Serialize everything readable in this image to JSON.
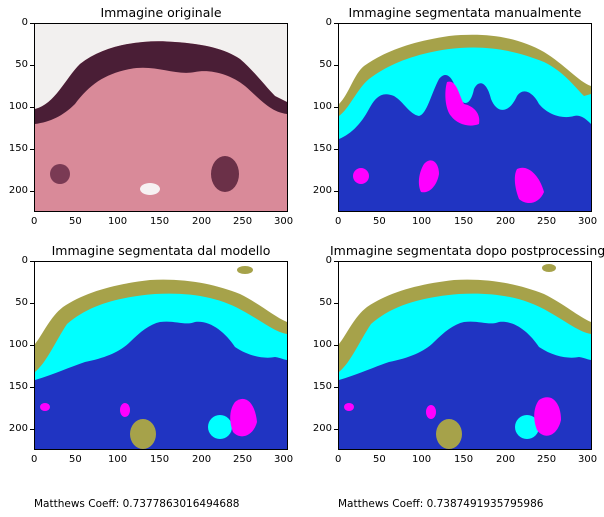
{
  "figure": {
    "panels": [
      {
        "id": "p1",
        "title": "Immagine originale"
      },
      {
        "id": "p2",
        "title": "Immagine segmentata manualmente"
      },
      {
        "id": "p3",
        "title": "Immagine segmentata dal modello"
      },
      {
        "id": "p4",
        "title": "Immagine segmentata dopo postprocessing"
      }
    ],
    "coeff_labels": [
      "Matthews Coeff: 0.7377863016494688",
      "Matthews Coeff: 0.7387491935795986"
    ]
  },
  "colors": {
    "background_class": "#2034c2",
    "cyan_class": "#00ffff",
    "olive_class": "#a6a24a",
    "magenta_class": "#ff00ff",
    "tissue_pink": "#d98a99",
    "tissue_dark": "#4a1e36",
    "slide_bg": "#f2f0ef"
  },
  "chart_data": [
    {
      "type": "image",
      "title": "Immagine originale",
      "xticks": [
        0,
        50,
        100,
        150,
        200,
        250,
        300
      ],
      "yticks": [
        0,
        50,
        100,
        150,
        200
      ],
      "xlim": [
        0,
        305
      ],
      "ylim": [
        225,
        0
      ]
    },
    {
      "type": "image",
      "title": "Immagine segmentata manualmente",
      "xticks": [
        0,
        50,
        100,
        150,
        200,
        250,
        300
      ],
      "yticks": [
        0,
        50,
        100,
        150,
        200
      ],
      "xlim": [
        0,
        305
      ],
      "ylim": [
        225,
        0
      ]
    },
    {
      "type": "image",
      "title": "Immagine segmentata dal modello",
      "xticks": [
        0,
        50,
        100,
        150,
        200,
        250,
        300
      ],
      "yticks": [
        0,
        50,
        100,
        150,
        200
      ],
      "xlim": [
        0,
        305
      ],
      "ylim": [
        225,
        0
      ],
      "annotation": "Matthews Coeff: 0.7377863016494688"
    },
    {
      "type": "image",
      "title": "Immagine segmentata dopo postprocessing",
      "xticks": [
        0,
        50,
        100,
        150,
        200,
        250,
        300
      ],
      "yticks": [
        0,
        50,
        100,
        150,
        200
      ],
      "xlim": [
        0,
        305
      ],
      "ylim": [
        225,
        0
      ],
      "annotation": "Matthews Coeff: 0.7387491935795986"
    }
  ]
}
